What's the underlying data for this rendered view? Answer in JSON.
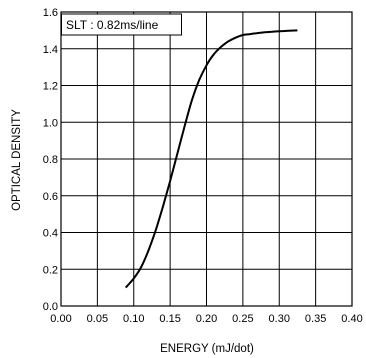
{
  "chart_data": {
    "type": "line",
    "xlabel": "ENERGY (mJ/dot)",
    "ylabel": "OPTICAL DENSITY",
    "xlim": [
      0.0,
      0.4
    ],
    "ylim": [
      0.0,
      1.6
    ],
    "x_ticks": [
      "0.00",
      "0.05",
      "0.10",
      "0.15",
      "0.20",
      "0.25",
      "0.30",
      "0.35",
      "0.40"
    ],
    "y_ticks": [
      "0.0",
      "0.2",
      "0.4",
      "0.6",
      "0.8",
      "1.0",
      "1.2",
      "1.4",
      "1.6"
    ],
    "grid": true,
    "annotation": "SLT : 0.82ms/line",
    "series": [
      {
        "x": [
          0.089,
          0.1,
          0.11,
          0.12,
          0.13,
          0.14,
          0.15,
          0.16,
          0.17,
          0.18,
          0.19,
          0.2,
          0.21,
          0.22,
          0.23,
          0.24,
          0.25,
          0.26,
          0.27,
          0.28,
          0.29,
          0.3,
          0.31,
          0.325
        ],
        "y": [
          0.1,
          0.15,
          0.21,
          0.3,
          0.41,
          0.54,
          0.68,
          0.83,
          0.98,
          1.12,
          1.23,
          1.31,
          1.37,
          1.41,
          1.44,
          1.46,
          1.475,
          1.48,
          1.485,
          1.49,
          1.493,
          1.495,
          1.497,
          1.5
        ]
      }
    ]
  }
}
